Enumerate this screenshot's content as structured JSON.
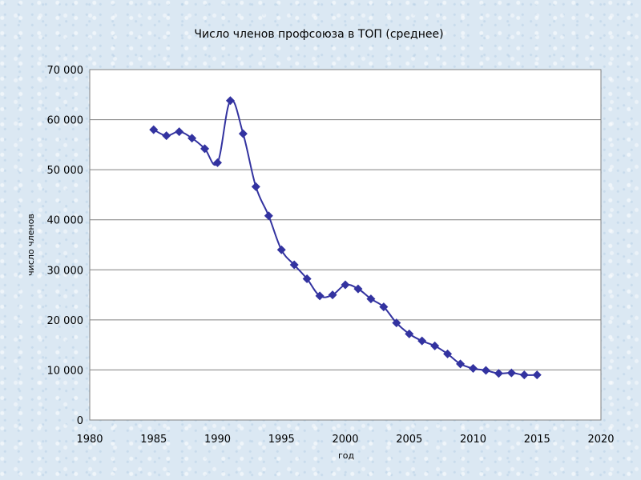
{
  "chart_data": {
    "type": "line",
    "title": "Число членов профсоюза в ТОП (среднее)",
    "xlabel": "год",
    "ylabel": "число членов",
    "xlim": [
      1980,
      2020
    ],
    "ylim": [
      0,
      70000
    ],
    "x_ticks": [
      "1980",
      "1985",
      "1990",
      "1995",
      "2000",
      "2005",
      "2010",
      "2015",
      "2020"
    ],
    "y_ticks": [
      "0",
      "10 000",
      "20 000",
      "30 000",
      "40 000",
      "50 000",
      "60 000",
      "70 000"
    ],
    "grid": "horizontal",
    "series_color": "#3333a0",
    "marker": "diamond",
    "series": [
      {
        "x": [
          1985,
          1986,
          1987,
          1988,
          1989,
          1990,
          1991,
          1992,
          1993,
          1994,
          1995,
          1996,
          1997,
          1998,
          1999,
          2000,
          2001,
          2002,
          2003,
          2004,
          2005,
          2006,
          2007,
          2008,
          2009,
          2010,
          2011,
          2012,
          2013,
          2014,
          2015
        ],
        "y": [
          58000,
          56800,
          57600,
          56300,
          54200,
          51400,
          63800,
          57200,
          46600,
          40800,
          34000,
          31000,
          28200,
          24800,
          25000,
          27000,
          26200,
          24200,
          22600,
          19400,
          17200,
          15800,
          14800,
          13200,
          11200,
          10300,
          9900,
          9300,
          9400,
          9000,
          9000
        ]
      }
    ]
  }
}
